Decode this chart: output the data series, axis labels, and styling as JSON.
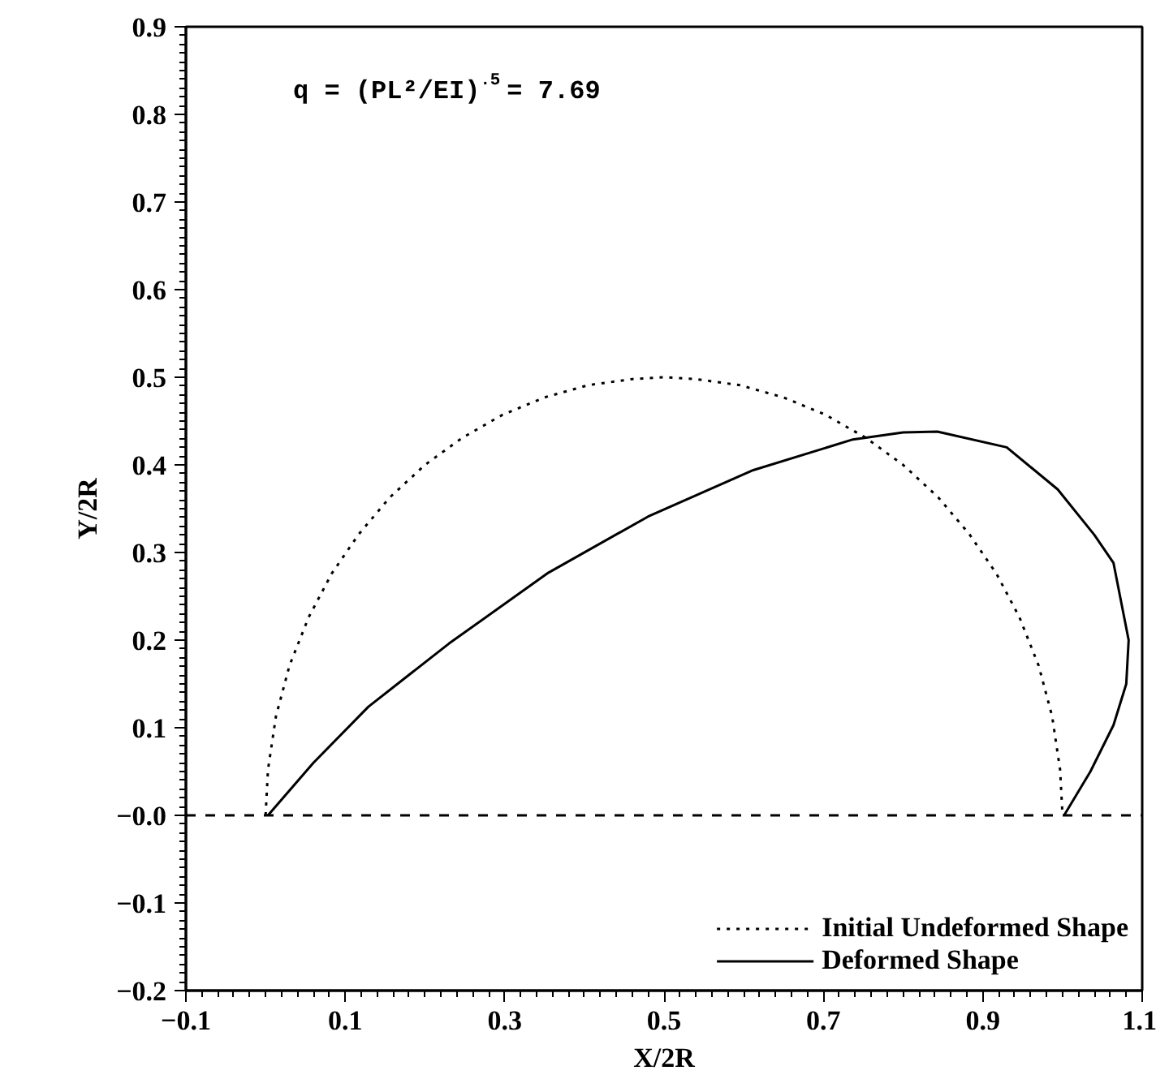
{
  "chart_data": {
    "type": "line",
    "xlabel": "X/2R",
    "ylabel": "Y/2R",
    "annotations": [
      "q = (PL²/EI)$^{.5}$ = 7.69"
    ],
    "xlim": [
      -0.1,
      1.1
    ],
    "ylim": [
      -0.2,
      0.9
    ],
    "xticks": [
      {
        "value": -0.1,
        "label": "−0.1"
      },
      0.1,
      0.3,
      0.5,
      0.7,
      0.9,
      1.1
    ],
    "yticks": [
      {
        "value": -0.2,
        "label": "−0.2"
      },
      {
        "value": -0.1,
        "label": "−0.1"
      },
      {
        "value": 0,
        "label": "−0.0"
      },
      0.1,
      0.2,
      0.3,
      0.4,
      0.5,
      0.6,
      0.7,
      0.8,
      0.9
    ],
    "grid": false,
    "legend": "bottom right",
    "ref_lines": [
      {
        "axis": "y",
        "value": 0,
        "line_style": "dashed",
        "color": "#000000"
      }
    ],
    "series": [
      {
        "name": "Initial Undeformed Shape",
        "color": "#000000",
        "line_style": "dotted",
        "x": [
          0.0,
          0.003,
          0.013,
          0.03,
          0.054,
          0.083,
          0.117,
          0.156,
          0.2,
          0.247,
          0.297,
          0.35,
          0.405,
          0.461,
          0.5,
          0.539,
          0.595,
          0.65,
          0.703,
          0.753,
          0.8,
          0.844,
          0.883,
          0.917,
          0.946,
          0.97,
          0.987,
          0.997,
          1.0
        ],
        "values": [
          0.0,
          0.052,
          0.113,
          0.171,
          0.226,
          0.276,
          0.321,
          0.363,
          0.4,
          0.431,
          0.457,
          0.477,
          0.491,
          0.498,
          0.5,
          0.498,
          0.491,
          0.477,
          0.457,
          0.431,
          0.4,
          0.363,
          0.321,
          0.276,
          0.226,
          0.171,
          0.113,
          0.052,
          0.0
        ]
      },
      {
        "name": "Deformed Shape",
        "color": "#000000",
        "line_style": "solid",
        "x": [
          0.003,
          0.06,
          0.129,
          0.23,
          0.355,
          0.48,
          0.612,
          0.737,
          0.8,
          0.843,
          0.93,
          0.994,
          1.04,
          1.064,
          1.083,
          1.08,
          1.064,
          1.035,
          1.002
        ],
        "values": [
          0.0,
          0.06,
          0.124,
          0.196,
          0.277,
          0.341,
          0.394,
          0.429,
          0.437,
          0.438,
          0.42,
          0.372,
          0.32,
          0.288,
          0.2,
          0.15,
          0.103,
          0.05,
          0.0
        ]
      }
    ]
  }
}
